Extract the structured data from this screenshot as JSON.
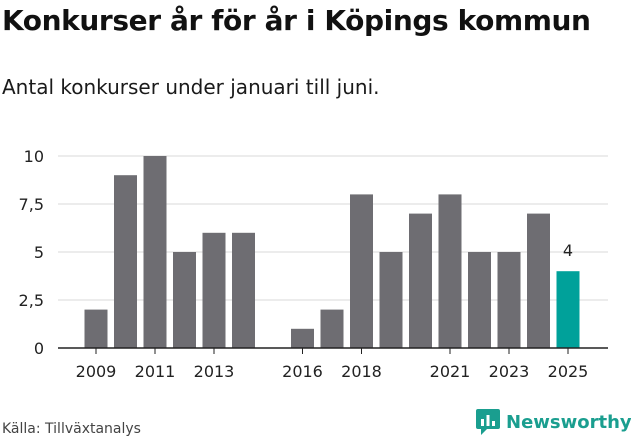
{
  "title": "Konkurser år för år i Köpings kommun",
  "subtitle": "Antal konkurser under januari till juni.",
  "source": "Källa: Tillväxtanalys",
  "brand": {
    "name": "Newsworthy",
    "icon": "newsworthy-logo-icon",
    "color": "#1a9e8f"
  },
  "colors": {
    "bar": "#6e6d72",
    "highlight": "#00a19a",
    "grid": "#d9d9d9",
    "axis": "#222222"
  },
  "chart_data": {
    "type": "bar",
    "categories": [
      "2009",
      "2010",
      "2011",
      "2012",
      "2013",
      "2014",
      "2015",
      "2016",
      "2017",
      "2018",
      "2019",
      "2020",
      "2021",
      "2022",
      "2023",
      "2024",
      "2025"
    ],
    "values": [
      2,
      9,
      10,
      5,
      6,
      6,
      null,
      1,
      2,
      8,
      5,
      7,
      8,
      5,
      5,
      7,
      4
    ],
    "highlight_category": "2025",
    "data_labels": [
      {
        "category": "2025",
        "text": "4"
      }
    ],
    "x_tick_labels": [
      "2009",
      "2011",
      "2013",
      "2016",
      "2018",
      "2021",
      "2023",
      "2025"
    ],
    "y_ticks": [
      0,
      2.5,
      5,
      7.5,
      10
    ],
    "y_tick_labels": [
      "0",
      "2,5",
      "5",
      "7,5",
      "10"
    ],
    "ylim": [
      0,
      10
    ],
    "grid": true,
    "xlabel": "",
    "ylabel": ""
  }
}
